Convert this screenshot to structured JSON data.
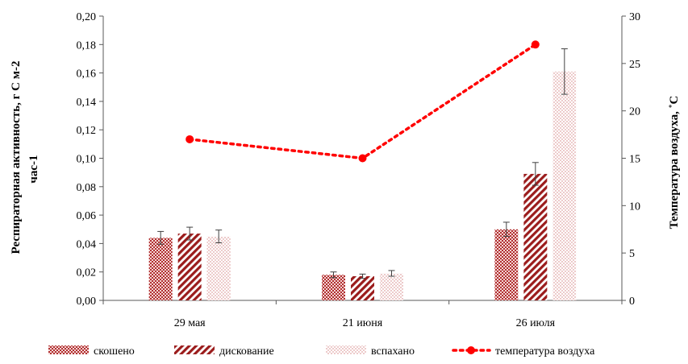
{
  "chart_data": {
    "type": "bar",
    "categories": [
      "29 мая",
      "21 июня",
      "26 июля"
    ],
    "series": [
      {
        "name": "скошено",
        "values": [
          0.044,
          0.018,
          0.05
        ],
        "errors": [
          0.0045,
          0.002,
          0.005
        ],
        "pattern": "cross-hatch",
        "color": "#c0504d"
      },
      {
        "name": "дискование",
        "values": [
          0.047,
          0.017,
          0.089
        ],
        "errors": [
          0.0045,
          0.0015,
          0.008
        ],
        "pattern": "diagonal",
        "color": "#9b1c1c"
      },
      {
        "name": "вспахано",
        "values": [
          0.045,
          0.019,
          0.161
        ],
        "errors": [
          0.0045,
          0.002,
          0.016
        ],
        "pattern": "dots",
        "color": "#e6a3a3"
      }
    ],
    "line_series": {
      "name": "температура  воздуха",
      "values": [
        17,
        15,
        27
      ],
      "color": "#ff0000",
      "style": "dotted",
      "marker": "circle"
    },
    "ylabel": "Респираторная активность, г С м-2 час-1",
    "ylabel_lines": [
      "Респираторная активность, г С м-2",
      "час-1"
    ],
    "y2label": "Температура воздуха, ˚С",
    "ylim": [
      0,
      0.2
    ],
    "y2lim": [
      0,
      30
    ],
    "yticks": [
      "0,00",
      "0,02",
      "0,04",
      "0,06",
      "0,08",
      "0,10",
      "0,12",
      "0,14",
      "0,16",
      "0,18",
      "0,20"
    ],
    "y2ticks": [
      "0",
      "5",
      "10",
      "15",
      "20",
      "25",
      "30"
    ],
    "legend_position": "bottom",
    "grid": false
  }
}
